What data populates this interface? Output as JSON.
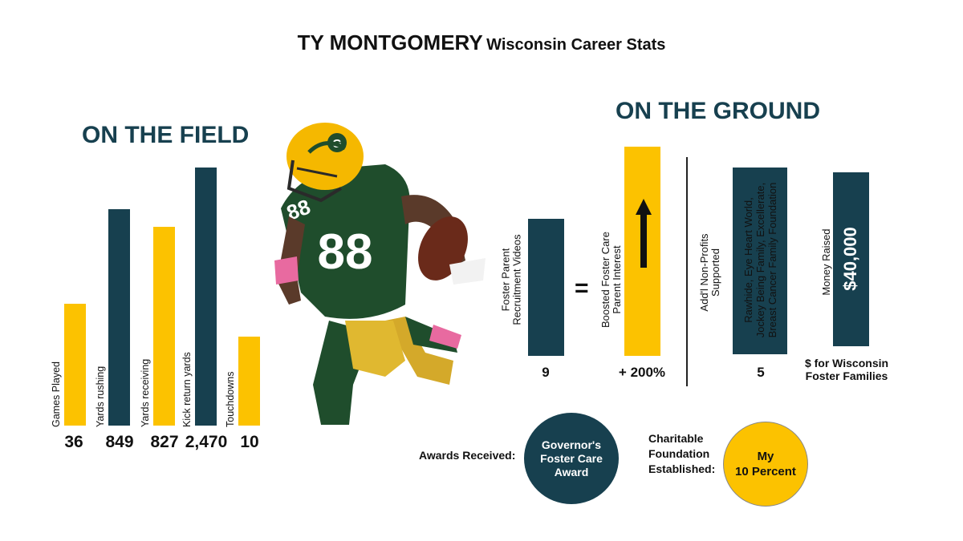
{
  "title": {
    "name": "TY MONTGOMERY",
    "subtitle": "Wisconsin Career Stats"
  },
  "on_the_field": {
    "heading": "ON THE FIELD"
  },
  "on_the_ground": {
    "heading": "ON THE GROUND",
    "equals": "=",
    "foster_videos": {
      "label_line1": "Foster Parent",
      "label_line2": "Recruitment Videos",
      "value": "9"
    },
    "foster_interest": {
      "label_line1": "Boosted Foster Care",
      "label_line2": "Parent Interest",
      "value": "+ 200%"
    },
    "nonprofits": {
      "label_line1": "Add'l Non-Profits",
      "label_line2": "Supported",
      "value": "5",
      "orgs_line1": "Rawhide, Eye Heart World,",
      "orgs_line2": "Jockey Being Family, Excellerate,",
      "orgs_line3": "Breast Cancer Family Foundation"
    },
    "money": {
      "label": "Money Raised",
      "amount": "$40,000",
      "caption_line1": "$ for Wisconsin",
      "caption_line2": "Foster Families"
    }
  },
  "awards": {
    "label": "Awards Received:",
    "line1": "Governor's",
    "line2": "Foster Care",
    "line3": "Award"
  },
  "foundation": {
    "label_line1": "Charitable",
    "label_line2": "Foundation",
    "label_line3": "Established:",
    "line1": "My",
    "line2": "10 Percent"
  },
  "colors": {
    "navy": "#17404f",
    "gold": "#fcc200",
    "green": "#1f4d2c"
  },
  "chart_data": {
    "type": "bar",
    "title": "ON THE FIELD",
    "categories": [
      "Games Played",
      "Yards rushing",
      "Yards receiving",
      "Kick return yards",
      "Touchdowns"
    ],
    "value_labels": [
      "36",
      "849",
      "827",
      "2,470",
      "10"
    ],
    "values": [
      36,
      849,
      827,
      2470,
      10
    ],
    "bar_colors": [
      "#fcc200",
      "#17404f",
      "#fcc200",
      "#17404f",
      "#fcc200"
    ],
    "note": "Bar heights are illustrative, not proportional to values"
  }
}
